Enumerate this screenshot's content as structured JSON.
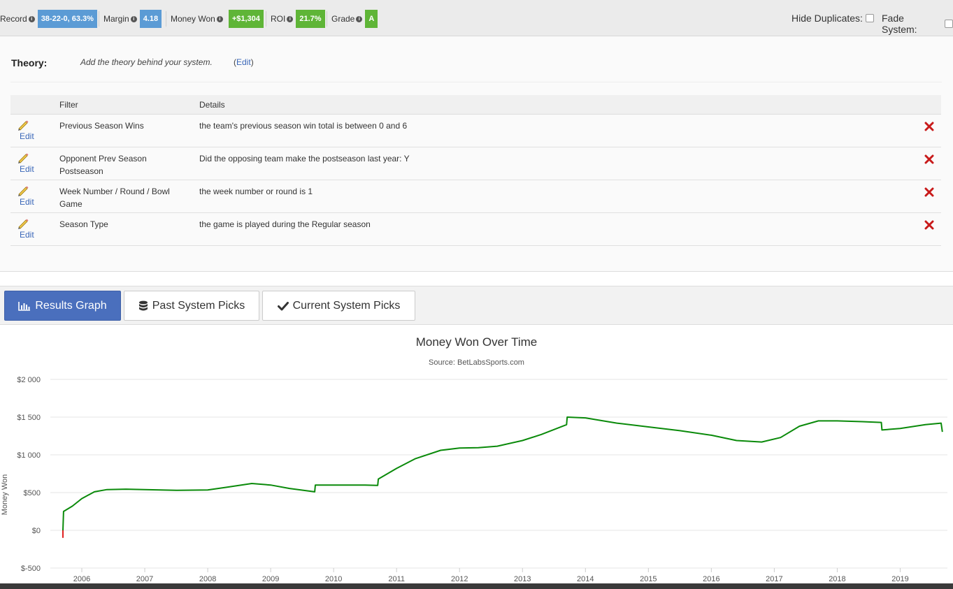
{
  "stats": {
    "record_label": "Record",
    "record_value": "38-22-0, 63.3%",
    "margin_label": "Margin",
    "margin_value": "4.18",
    "money_label": "Money Won",
    "money_value": "+$1,304",
    "roi_label": "ROI",
    "roi_value": "21.7%",
    "grade_label": "Grade",
    "grade_value": "A"
  },
  "toggles": {
    "hide_duplicates": "Hide Duplicates:",
    "fade_system": "Fade System:"
  },
  "theory": {
    "label": "Theory:",
    "text": "Add the theory behind your system.",
    "edit_open": "(",
    "edit_link": "Edit",
    "edit_close": ")"
  },
  "filters": {
    "col_filter": "Filter",
    "col_details": "Details",
    "edit_label": "Edit",
    "rows": [
      {
        "name": "Previous Season Wins",
        "details": "the team's previous season win total is between 0 and 6"
      },
      {
        "name": "Opponent Prev Season Postseason",
        "details": "Did the opposing team make the postseason last year: Y"
      },
      {
        "name": "Week Number / Round / Bowl Game",
        "details": "the week number or round is 1"
      },
      {
        "name": "Season Type",
        "details": "the game is played during the Regular season"
      }
    ]
  },
  "tabs": {
    "results_graph": "Results Graph",
    "past_picks": "Past System Picks",
    "current_picks": "Current System Picks"
  },
  "colors": {
    "accent": "#4a6fbd",
    "positive_line": "#0a8a0a",
    "negative_line": "#e02020",
    "badge_blue": "#5b9bd5",
    "badge_green": "#5fb537"
  },
  "chart_data": {
    "type": "line",
    "title": "Money Won Over Time",
    "subtitle": "Source: BetLabsSports.com",
    "ylabel": "Money Won",
    "xlabel": "",
    "ylim": [
      -500,
      2000
    ],
    "xlim": [
      2005.5,
      2019.75
    ],
    "y_ticks": [
      -500,
      0,
      500,
      1000,
      1500,
      2000
    ],
    "y_tick_labels": [
      "$-500",
      "$0",
      "$500",
      "$1 000",
      "$1 500",
      "$2 000"
    ],
    "x_ticks": [
      2006,
      2007,
      2008,
      2009,
      2010,
      2011,
      2012,
      2013,
      2014,
      2015,
      2016,
      2017,
      2018,
      2019
    ],
    "grid": true,
    "legend": "none",
    "series": [
      {
        "points": [
          [
            2005.7,
            -100
          ],
          [
            2005.71,
            250
          ],
          [
            2005.85,
            320
          ],
          [
            2006.0,
            420
          ],
          [
            2006.2,
            510
          ],
          [
            2006.4,
            540
          ],
          [
            2006.7,
            545
          ],
          [
            2007.0,
            540
          ],
          [
            2007.5,
            530
          ],
          [
            2008.0,
            535
          ],
          [
            2008.3,
            570
          ],
          [
            2008.7,
            620
          ],
          [
            2009.0,
            600
          ],
          [
            2009.3,
            555
          ],
          [
            2009.7,
            510
          ],
          [
            2009.71,
            600
          ],
          [
            2010.0,
            600
          ],
          [
            2010.5,
            600
          ],
          [
            2010.7,
            595
          ],
          [
            2010.71,
            680
          ],
          [
            2011.0,
            820
          ],
          [
            2011.3,
            950
          ],
          [
            2011.7,
            1060
          ],
          [
            2012.0,
            1090
          ],
          [
            2012.3,
            1095
          ],
          [
            2012.6,
            1115
          ],
          [
            2013.0,
            1190
          ],
          [
            2013.3,
            1270
          ],
          [
            2013.7,
            1400
          ],
          [
            2013.71,
            1500
          ],
          [
            2014.0,
            1490
          ],
          [
            2014.5,
            1420
          ],
          [
            2015.0,
            1370
          ],
          [
            2015.5,
            1320
          ],
          [
            2016.0,
            1260
          ],
          [
            2016.4,
            1190
          ],
          [
            2016.8,
            1170
          ],
          [
            2017.1,
            1230
          ],
          [
            2017.4,
            1380
          ],
          [
            2017.7,
            1450
          ],
          [
            2018.0,
            1450
          ],
          [
            2018.4,
            1440
          ],
          [
            2018.7,
            1430
          ],
          [
            2018.71,
            1330
          ],
          [
            2019.0,
            1350
          ],
          [
            2019.4,
            1400
          ],
          [
            2019.65,
            1420
          ],
          [
            2019.67,
            1305
          ]
        ]
      }
    ]
  }
}
